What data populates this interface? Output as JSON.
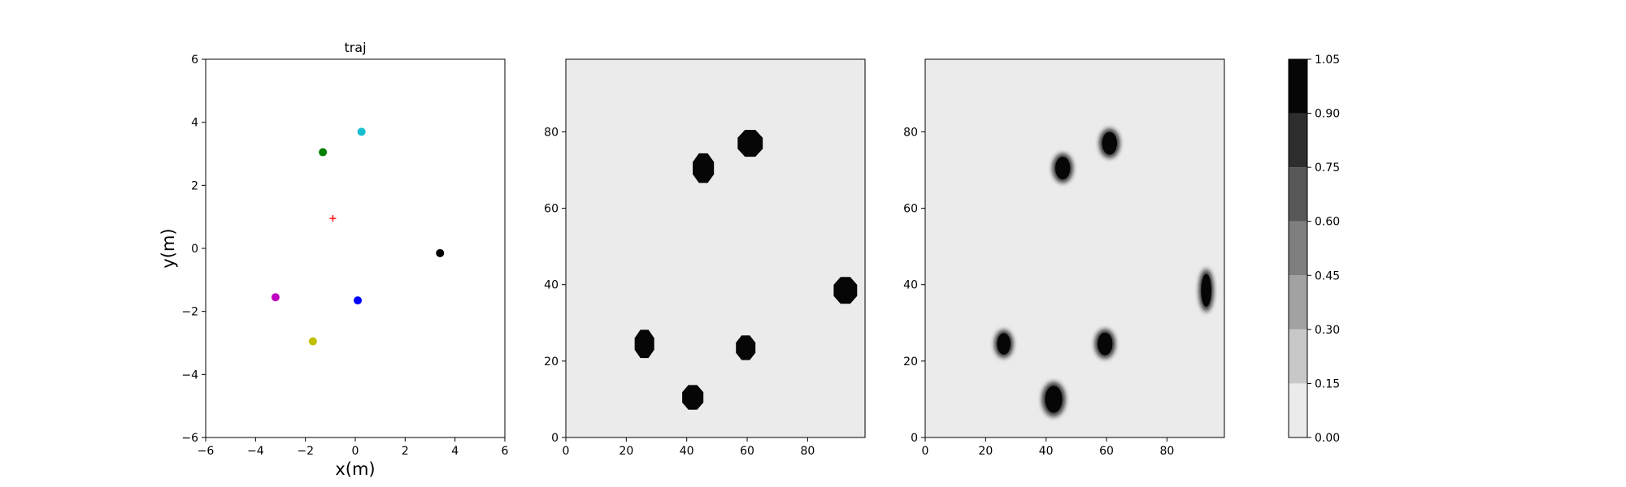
{
  "chart_data": [
    {
      "type": "scatter",
      "title": "traj",
      "xlabel": "x(m)",
      "ylabel": "y(m)",
      "xlim": [
        -6,
        6
      ],
      "ylim": [
        -6,
        6
      ],
      "xticks": [
        -6,
        -4,
        -2,
        0,
        2,
        4,
        6
      ],
      "yticks": [
        -6,
        -4,
        -2,
        0,
        2,
        4,
        6
      ],
      "grid": false,
      "points": [
        {
          "x": 0.25,
          "y": 3.7,
          "color": "#17becf",
          "marker": "circle"
        },
        {
          "x": -1.3,
          "y": 3.05,
          "color": "#008000",
          "marker": "circle"
        },
        {
          "x": 3.4,
          "y": -0.15,
          "color": "#000000",
          "marker": "circle"
        },
        {
          "x": -3.2,
          "y": -1.55,
          "color": "#bf00bf",
          "marker": "circle"
        },
        {
          "x": 0.1,
          "y": -1.65,
          "color": "#0000ff",
          "marker": "circle"
        },
        {
          "x": -1.7,
          "y": -2.95,
          "color": "#bfbf00",
          "marker": "circle"
        }
      ],
      "center_marker": {
        "x": -0.9,
        "y": 0.95,
        "color": "#ff0000",
        "marker": "plus"
      }
    },
    {
      "type": "heatmap",
      "xlim": [
        0,
        99
      ],
      "ylim": [
        0,
        99
      ],
      "xticks": [
        0,
        20,
        40,
        60,
        80
      ],
      "yticks": [
        0,
        20,
        40,
        60,
        80
      ],
      "background_value": 0.05,
      "blob_style": "hard",
      "blobs": [
        {
          "x": 61,
          "y": 77,
          "rx": 4.5,
          "ry": 3.8,
          "value": 1.0
        },
        {
          "x": 45.5,
          "y": 70.5,
          "rx": 3.8,
          "ry": 4.2,
          "value": 1.0
        },
        {
          "x": 92.5,
          "y": 38.5,
          "rx": 4.2,
          "ry": 3.8,
          "value": 1.0
        },
        {
          "x": 26,
          "y": 24.5,
          "rx": 3.5,
          "ry": 4.0,
          "value": 1.0
        },
        {
          "x": 59.5,
          "y": 23.5,
          "rx": 3.5,
          "ry": 3.5,
          "value": 1.0
        },
        {
          "x": 42,
          "y": 10.5,
          "rx": 3.8,
          "ry": 3.5,
          "value": 1.0
        }
      ]
    },
    {
      "type": "heatmap",
      "xlim": [
        0,
        99
      ],
      "ylim": [
        0,
        99
      ],
      "xticks": [
        0,
        20,
        40,
        60,
        80
      ],
      "yticks": [
        0,
        20,
        40,
        60,
        80
      ],
      "background_value": 0.05,
      "blob_style": "soft",
      "blobs": [
        {
          "x": 61,
          "y": 77,
          "rx": 3.3,
          "ry": 3.8,
          "value": 1.0
        },
        {
          "x": 45.5,
          "y": 70.5,
          "rx": 3.3,
          "ry": 3.8,
          "value": 1.0
        },
        {
          "x": 93,
          "y": 38.5,
          "rx": 2.3,
          "ry": 5.5,
          "value": 1.0
        },
        {
          "x": 26,
          "y": 24.5,
          "rx": 3.0,
          "ry": 3.6,
          "value": 1.0
        },
        {
          "x": 59.5,
          "y": 24.5,
          "rx": 3.3,
          "ry": 3.8,
          "value": 1.0
        },
        {
          "x": 42.5,
          "y": 10,
          "rx": 3.8,
          "ry": 4.5,
          "value": 1.0
        }
      ]
    }
  ],
  "colorbar": {
    "levels": [
      0.0,
      0.15,
      0.3,
      0.45,
      0.6,
      0.75,
      0.9,
      1.05
    ],
    "tick_labels": [
      "0.00",
      "0.15",
      "0.30",
      "0.45",
      "0.60",
      "0.75",
      "0.90",
      "1.05"
    ],
    "colors": [
      "#ebebeb",
      "#c8c8c8",
      "#a2a2a2",
      "#7e7e7e",
      "#585858",
      "#2e2e2e",
      "#060606"
    ]
  }
}
